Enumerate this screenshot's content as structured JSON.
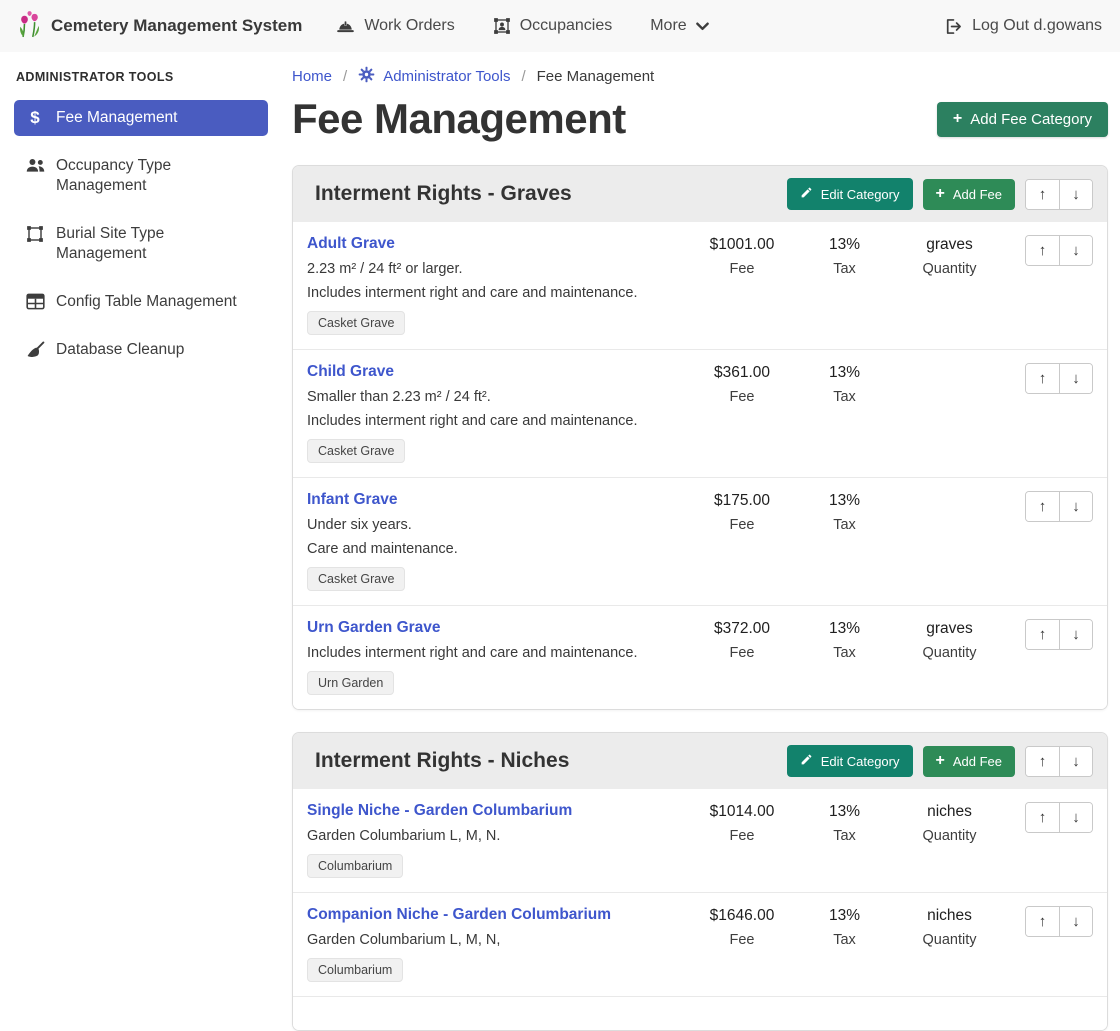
{
  "navbar": {
    "brand": "Cemetery Management System",
    "items": [
      {
        "label": "Work Orders",
        "icon": "hard-hat-icon"
      },
      {
        "label": "Occupancies",
        "icon": "occupancy-frame-icon"
      },
      {
        "label": "More",
        "icon": "chevron-down-icon"
      }
    ],
    "logout_label": "Log Out d.gowans"
  },
  "sidebar": {
    "heading": "ADMINISTRATOR TOOLS",
    "items": [
      {
        "label": "Fee Management",
        "icon": "dollar-icon",
        "active": true
      },
      {
        "label": "Occupancy Type Management",
        "icon": "people-icon",
        "active": false
      },
      {
        "label": "Burial Site Type Management",
        "icon": "vector-square-icon",
        "active": false
      },
      {
        "label": "Config Table Management",
        "icon": "table-icon",
        "active": false
      },
      {
        "label": "Database Cleanup",
        "icon": "broom-icon",
        "active": false
      }
    ]
  },
  "breadcrumb": {
    "home": "Home",
    "section": "Administrator Tools",
    "current": "Fee Management",
    "separator": "/"
  },
  "page": {
    "title": "Fee Management",
    "add_category_label": "Add Fee Category"
  },
  "category_actions": {
    "edit_label": "Edit Category",
    "add_fee_label": "Add Fee"
  },
  "labels": {
    "fee": "Fee",
    "tax": "Tax",
    "quantity": "Quantity"
  },
  "icons": {
    "plus": "+",
    "up_arrow": "↑",
    "down_arrow": "↓"
  },
  "colors": {
    "accent_indigo": "#4a5cc0",
    "link_blue": "#3e56cc",
    "add_category_green": "#2c8060",
    "edit_teal": "#12826c",
    "add_fee_green": "#2e8b57",
    "header_gray": "#ececec",
    "navbar_gray": "#f8f8f8"
  },
  "categories": [
    {
      "title": "Interment Rights - Graves",
      "fees": [
        {
          "name": "Adult Grave",
          "descriptions": [
            "2.23 m² / 24 ft² or larger.",
            "Includes interment right and care and maintenance."
          ],
          "badge": "Casket Grave",
          "fee": "$1001.00",
          "tax": "13%",
          "quantity": "graves"
        },
        {
          "name": "Child Grave",
          "descriptions": [
            "Smaller than 2.23 m² / 24 ft².",
            "Includes interment right and care and maintenance."
          ],
          "badge": "Casket Grave",
          "fee": "$361.00",
          "tax": "13%",
          "quantity": ""
        },
        {
          "name": "Infant Grave",
          "descriptions": [
            "Under six years.",
            "Care and maintenance."
          ],
          "badge": "Casket Grave",
          "fee": "$175.00",
          "tax": "13%",
          "quantity": ""
        },
        {
          "name": "Urn Garden Grave",
          "descriptions": [
            "Includes interment right and care and maintenance."
          ],
          "badge": "Urn Garden",
          "fee": "$372.00",
          "tax": "13%",
          "quantity": "graves"
        }
      ]
    },
    {
      "title": "Interment Rights - Niches",
      "fees": [
        {
          "name": "Single Niche - Garden Columbarium",
          "descriptions": [
            "Garden Columbarium L, M, N."
          ],
          "badge": "Columbarium",
          "fee": "$1014.00",
          "tax": "13%",
          "quantity": "niches"
        },
        {
          "name": "Companion Niche - Garden Columbarium",
          "descriptions": [
            "Garden Columbarium L, M, N,"
          ],
          "badge": "Columbarium",
          "fee": "$1646.00",
          "tax": "13%",
          "quantity": "niches"
        }
      ]
    }
  ]
}
